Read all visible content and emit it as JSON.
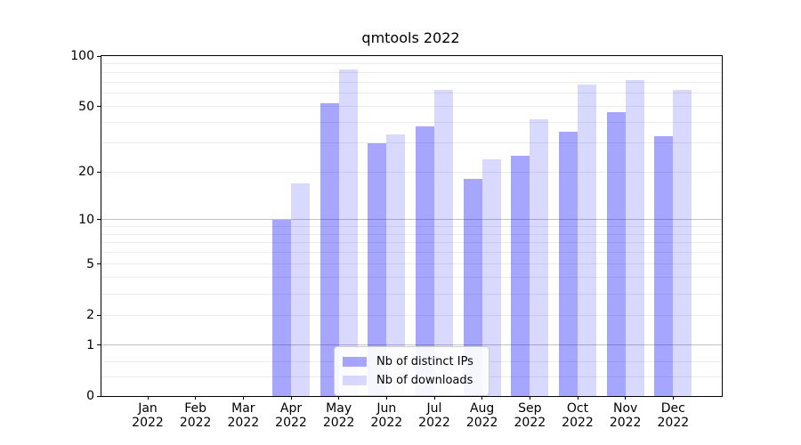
{
  "chart_data": {
    "type": "bar",
    "title": "qmtools 2022",
    "categories": [
      "Jan",
      "Feb",
      "Mar",
      "Apr",
      "May",
      "Jun",
      "Jul",
      "Aug",
      "Sep",
      "Oct",
      "Nov",
      "Dec"
    ],
    "year": "2022",
    "series": [
      {
        "name": "Nb of distinct IPs",
        "color": "#0000ff",
        "opacity": 0.35,
        "values": [
          0,
          0,
          0,
          10,
          52,
          30,
          38,
          18,
          25,
          35,
          46,
          33
        ]
      },
      {
        "name": "Nb of downloads",
        "color": "#0000ff",
        "opacity": 0.15,
        "values": [
          0,
          0,
          0,
          17,
          83,
          34,
          63,
          24,
          42,
          68,
          72,
          63
        ]
      }
    ],
    "y_axis": {
      "scale": "log1p",
      "range": [
        0,
        100
      ],
      "ticks": [
        0,
        1,
        2,
        5,
        10,
        20,
        50,
        100
      ],
      "major_gridlines": [
        1,
        10
      ],
      "minor_gridlines": [
        0.3,
        0.6,
        2,
        3,
        4,
        5,
        6,
        7,
        8,
        9,
        20,
        30,
        40,
        50,
        60,
        70,
        80,
        90
      ]
    },
    "x_axis": {
      "label_lines": 2
    },
    "grid": true,
    "legend": {
      "position": "lower center"
    }
  }
}
